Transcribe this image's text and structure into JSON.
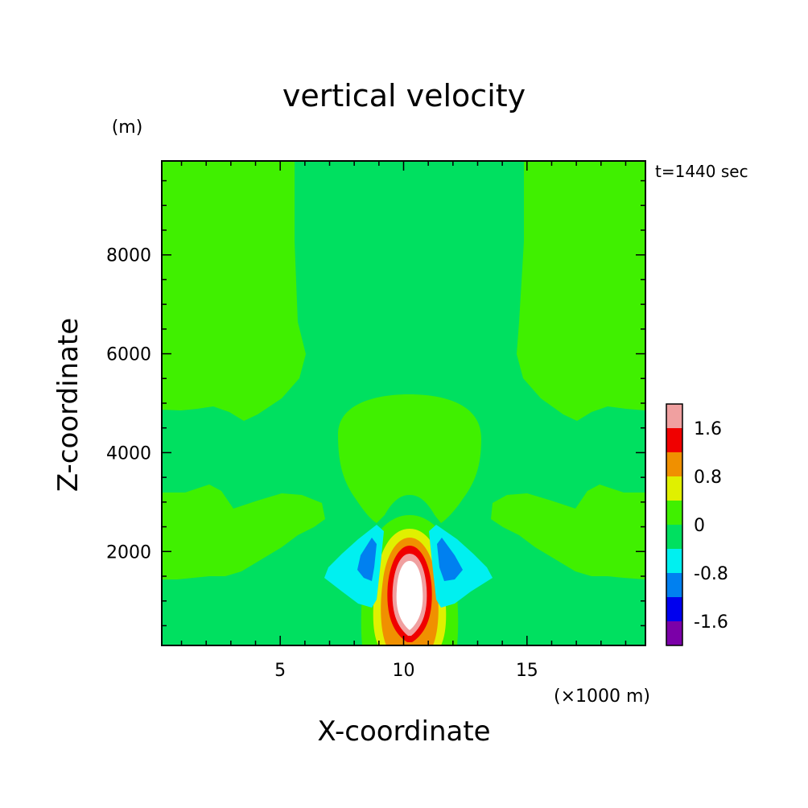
{
  "chart_data": {
    "type": "contour",
    "title": "vertical velocity",
    "xlabel": "X-coordinate",
    "ylabel": "Z-coordinate",
    "x_unit": "(×1000 m)",
    "y_unit": "(m)",
    "time_label": "t=1440 sec",
    "xlim": [
      0.2,
      19.8
    ],
    "ylim": [
      100,
      9900
    ],
    "x_ticks": [
      5,
      10,
      15
    ],
    "x_tick_labels": [
      "5",
      "10",
      "15"
    ],
    "y_ticks": [
      2000,
      4000,
      6000,
      8000
    ],
    "y_tick_labels": [
      "2000",
      "4000",
      "6000",
      "8000"
    ],
    "colorbar": {
      "levels": [
        -2.0,
        -1.6,
        -1.2,
        -0.8,
        -0.4,
        0,
        0.4,
        0.8,
        1.2,
        1.6,
        2.0
      ],
      "colors": [
        "#7b00a8",
        "#0000ee",
        "#0080f0",
        "#00f0f0",
        "#00e060",
        "#40f000",
        "#e0f000",
        "#f09000",
        "#f00000",
        "#f0a0a0"
      ],
      "tick_labels": [
        "1.6",
        "0.8",
        "0",
        "-0.8",
        "-1.6"
      ],
      "tick_values": [
        1.6,
        0.8,
        0,
        -0.8,
        -1.6
      ]
    },
    "background_color": "#00e060",
    "peak_updraft": {
      "x": 10.2,
      "z": 1200,
      "value": ">2.0"
    },
    "downdraft_cores": [
      {
        "x": 8.4,
        "z": 1500,
        "value": -0.8
      },
      {
        "x": 11.9,
        "z": 1500,
        "value": -0.8
      }
    ]
  }
}
